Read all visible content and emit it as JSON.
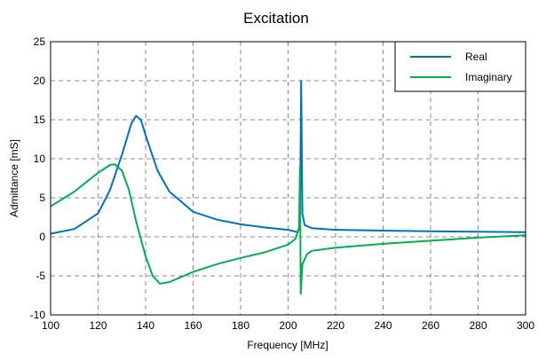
{
  "chart_data": {
    "type": "line",
    "title": "Excitation",
    "xlabel": "Frequency [MHz]",
    "ylabel": "Admittance [mS]",
    "xlim": [
      100,
      300
    ],
    "ylim": [
      -10,
      25
    ],
    "xticks": [
      100,
      120,
      140,
      160,
      180,
      200,
      220,
      240,
      260,
      280,
      300
    ],
    "yticks": [
      -10,
      -5,
      0,
      5,
      10,
      15,
      20,
      25
    ],
    "grid": true,
    "legend_position": "top-right",
    "series": [
      {
        "name": "Real",
        "color": "#0072bd",
        "x": [
          100,
          110,
          120,
          125,
          130,
          134,
          136,
          138,
          140,
          145,
          150,
          160,
          170,
          180,
          190,
          200,
          204,
          205,
          205.5,
          206,
          207,
          210,
          220,
          240,
          260,
          280,
          300
        ],
        "y": [
          0.4,
          1.0,
          3.0,
          6.0,
          10.5,
          14.5,
          15.5,
          15.0,
          13.0,
          8.5,
          5.8,
          3.2,
          2.2,
          1.6,
          1.2,
          0.9,
          0.6,
          1.5,
          20.0,
          3.0,
          1.5,
          1.1,
          0.9,
          0.8,
          0.7,
          0.65,
          0.6
        ]
      },
      {
        "name": "Imaginary",
        "color": "#00b050",
        "x": [
          100,
          110,
          120,
          125,
          127,
          130,
          133,
          136,
          140,
          143,
          146,
          150,
          160,
          170,
          180,
          190,
          200,
          203,
          204.6,
          205,
          205.3,
          206,
          208,
          210,
          220,
          240,
          260,
          280,
          300
        ],
        "y": [
          3.9,
          5.8,
          8.2,
          9.2,
          9.3,
          8.5,
          6.0,
          2.0,
          -2.5,
          -5.0,
          -6.0,
          -5.8,
          -4.5,
          -3.5,
          -2.7,
          -2.0,
          -1.0,
          -0.3,
          1.0,
          9.0,
          -7.3,
          -3.5,
          -2.2,
          -1.8,
          -1.4,
          -0.9,
          -0.5,
          -0.1,
          0.2
        ]
      }
    ]
  }
}
